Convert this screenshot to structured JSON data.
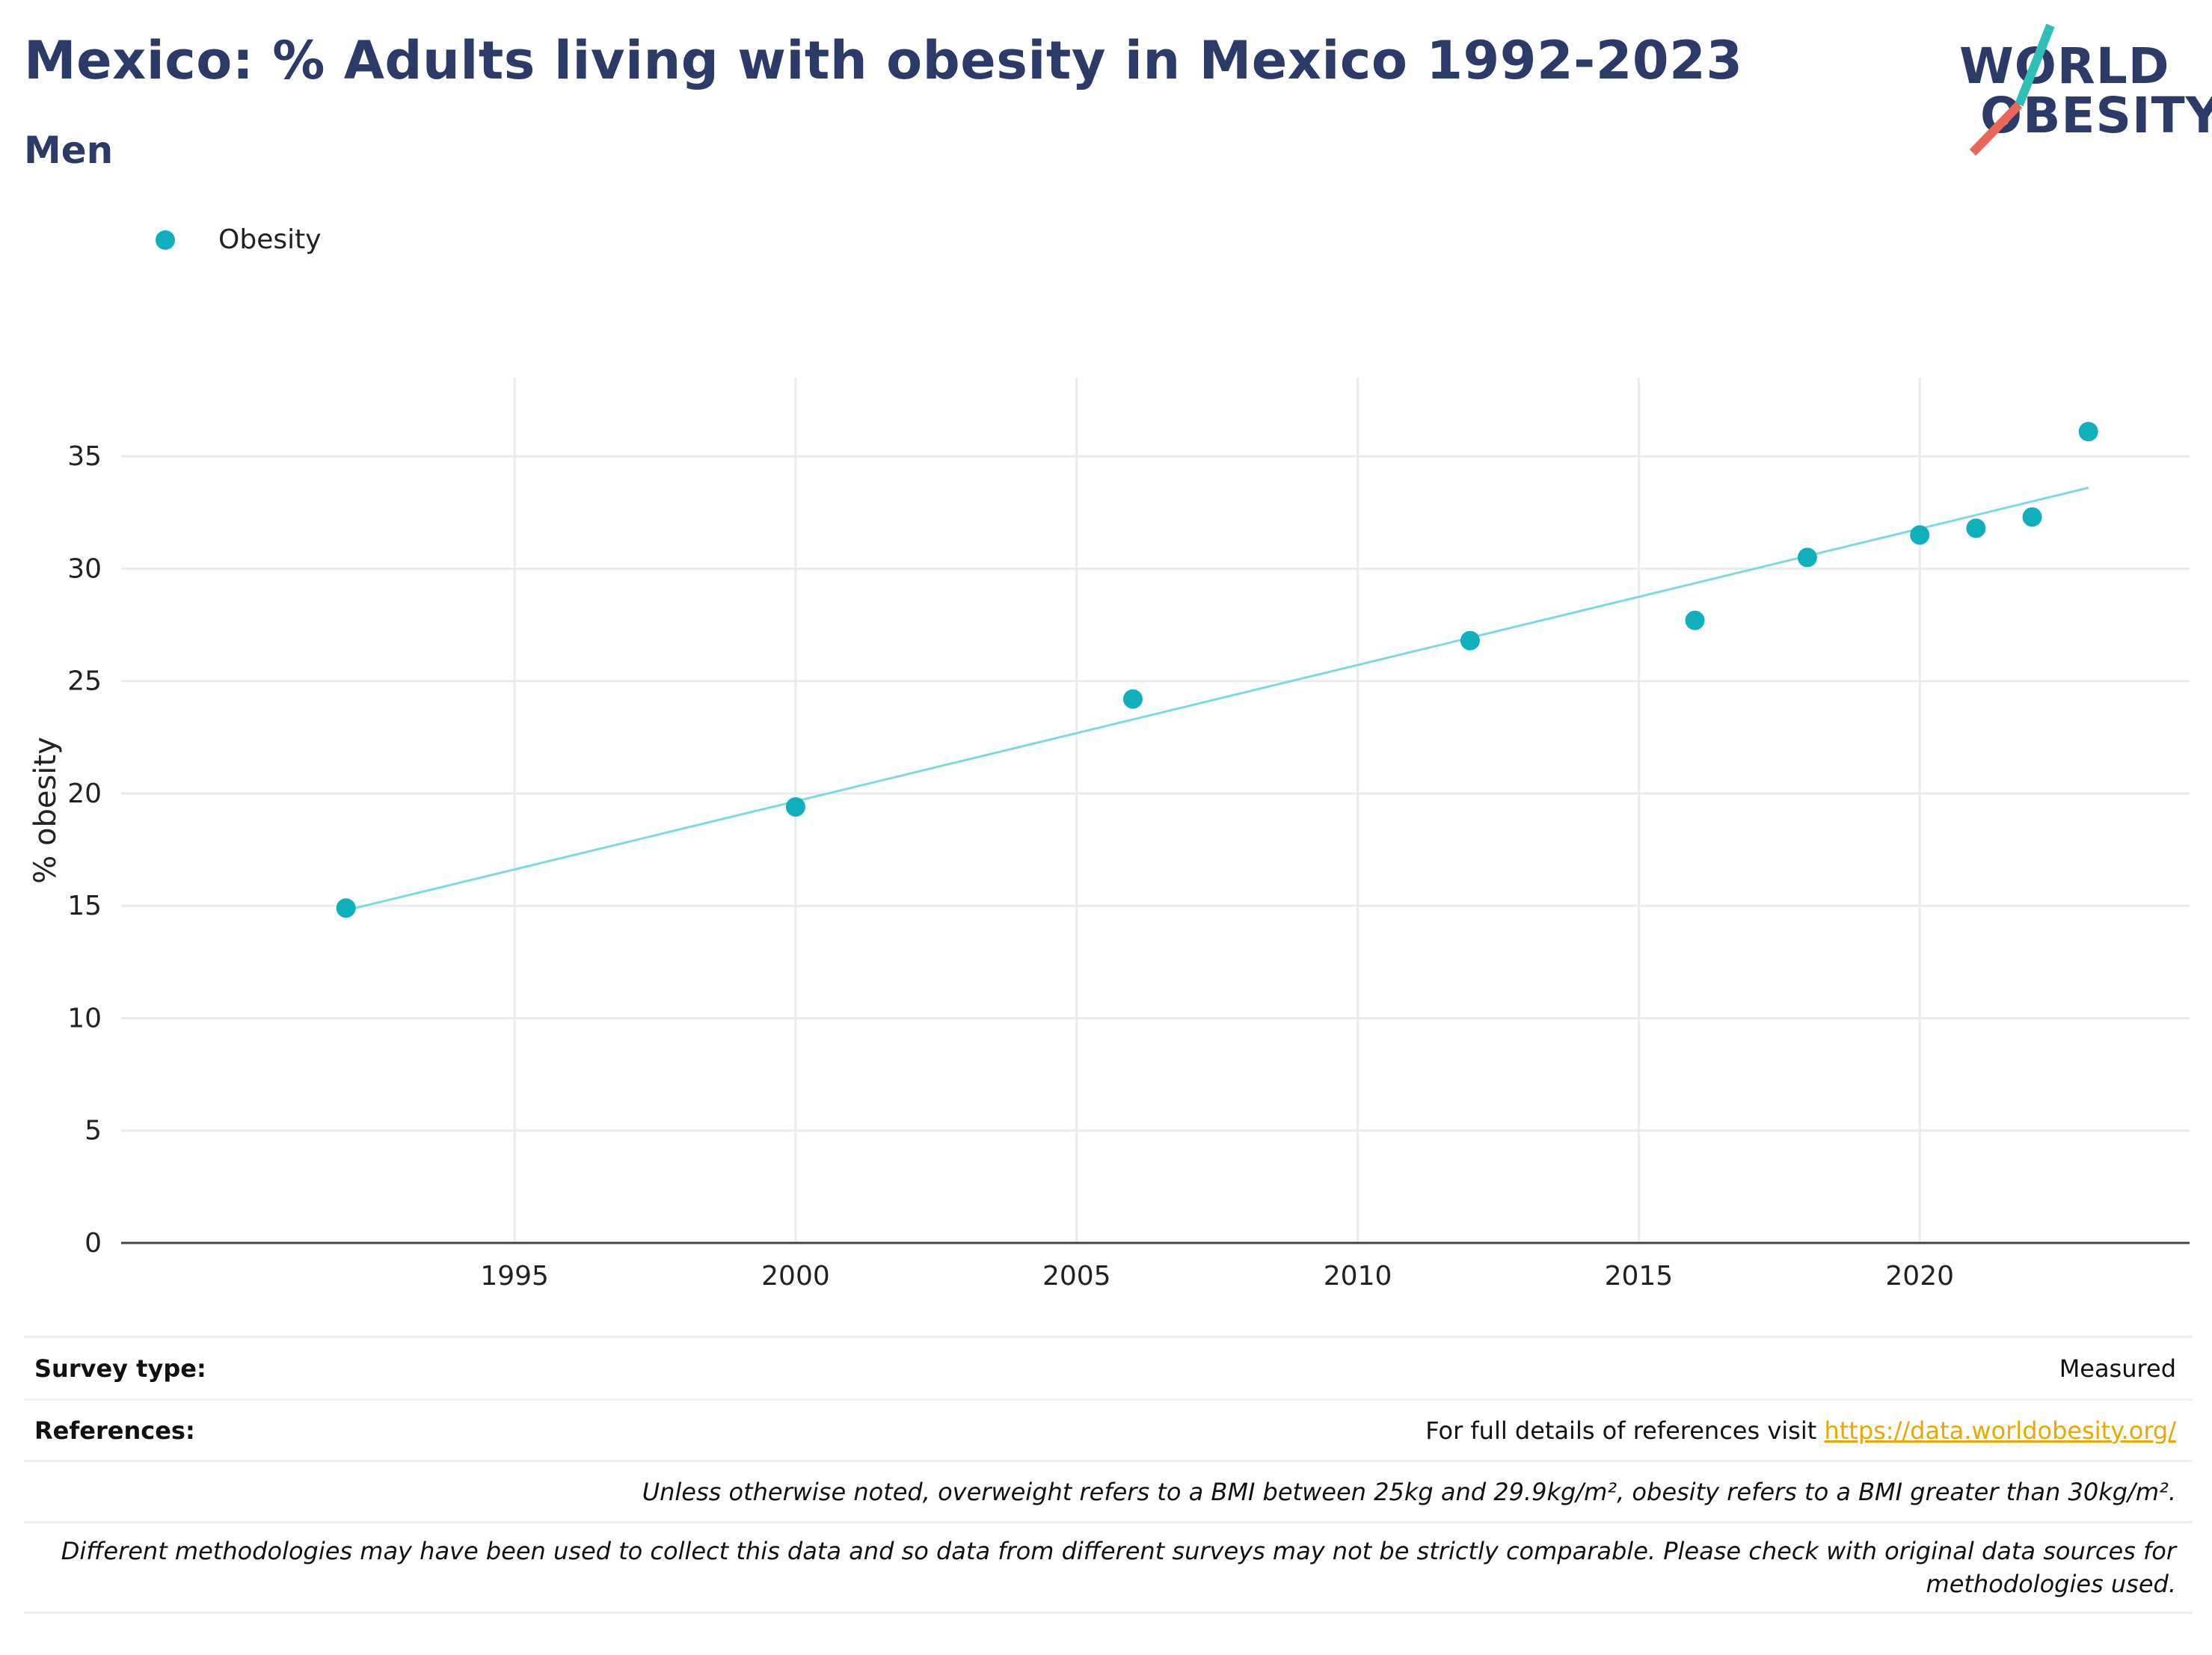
{
  "header": {
    "title": "Mexico: % Adults living with obesity in Mexico 1992-2023",
    "subtitle": "Men"
  },
  "logo": {
    "line1": "WORLD",
    "line2": "OBESITY",
    "accent_teal": "#2fbfb6",
    "accent_red": "#e8675a"
  },
  "legend": {
    "label": "Obesity",
    "color": "#0fb0bb"
  },
  "chart_data": {
    "type": "scatter",
    "series": [
      {
        "name": "Obesity",
        "color": "#0fb0bb",
        "x": [
          1992,
          2000,
          2006,
          2012,
          2016,
          2018,
          2020,
          2021,
          2022,
          2023
        ],
        "y": [
          14.9,
          19.4,
          24.2,
          26.8,
          27.7,
          30.5,
          31.5,
          31.8,
          32.3,
          36.1
        ]
      }
    ],
    "trendline": {
      "color": "#7fd8de",
      "x": [
        1992,
        2023
      ],
      "y": [
        14.8,
        33.6
      ]
    },
    "xlim": [
      1988,
      2024.8
    ],
    "ylim": [
      0,
      38.5
    ],
    "xticks": [
      1995,
      2000,
      2005,
      2010,
      2015,
      2020
    ],
    "yticks": [
      0,
      5,
      10,
      15,
      20,
      25,
      30,
      35
    ],
    "xlabel": "",
    "ylabel": "% obesity",
    "grid": true
  },
  "footer": {
    "survey_label": "Survey type:",
    "survey_value": "Measured",
    "references_label": "References:",
    "references_text": "For full details of references visit ",
    "references_link": "https://data.worldobesity.org/",
    "note1": "Unless otherwise noted, overweight refers to a BMI between 25kg and 29.9kg/m², obesity refers to a BMI greater than 30kg/m².",
    "note2_line1": "Different methodologies may have been used to collect this data and so data from different surveys may not be strictly comparable. Please check with original data sources for",
    "note2_line2": "methodologies used."
  }
}
